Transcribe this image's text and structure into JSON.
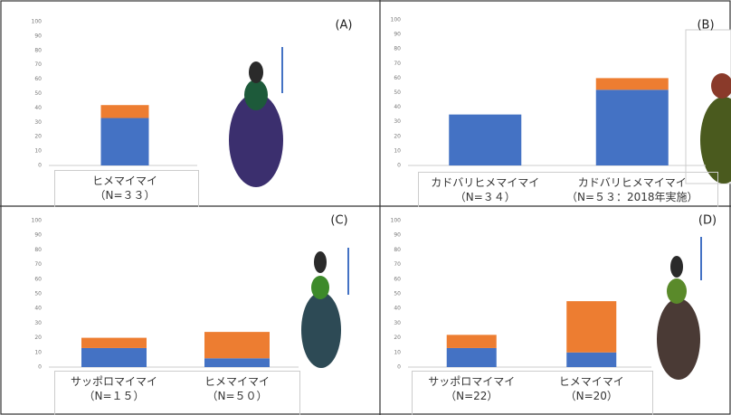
{
  "chart_data": [
    {
      "type": "bar",
      "stacked": true,
      "panel_label": "(A)",
      "categories": [
        "ヒメマイマイ\n（N=３３）"
      ],
      "series": [
        {
          "color": "#4472c4",
          "values": [
            33
          ]
        },
        {
          "color": "#ed7d31",
          "values": [
            9
          ]
        }
      ],
      "ylim": [
        0,
        100
      ],
      "yticks": [
        0,
        10,
        20,
        30,
        40,
        50,
        60,
        70,
        80,
        90,
        100
      ]
    },
    {
      "type": "bar",
      "stacked": true,
      "panel_label": "(B)",
      "categories": [
        "カドバリヒメマイマイ\n（N=３４）",
        "カドバリヒメマイマイ\n（N=５３：2018年実施）"
      ],
      "series": [
        {
          "color": "#4472c4",
          "values": [
            35,
            52
          ]
        },
        {
          "color": "#ed7d31",
          "values": [
            0,
            8
          ]
        }
      ],
      "ylim": [
        0,
        100
      ],
      "yticks": [
        0,
        10,
        20,
        30,
        40,
        50,
        60,
        70,
        80,
        90,
        100
      ]
    },
    {
      "type": "bar",
      "stacked": true,
      "panel_label": "(C)",
      "categories": [
        "サッポロマイマイ\n（N=１５）",
        "ヒメマイマイ\n（N=５０）"
      ],
      "series": [
        {
          "color": "#4472c4",
          "values": [
            13,
            6
          ]
        },
        {
          "color": "#ed7d31",
          "values": [
            7,
            18
          ]
        }
      ],
      "ylim": [
        0,
        100
      ],
      "yticks": [
        0,
        10,
        20,
        30,
        40,
        50,
        60,
        70,
        80,
        90,
        100
      ]
    },
    {
      "type": "bar",
      "stacked": true,
      "panel_label": "(D)",
      "categories": [
        "サッポロマイマイ\n（N=22）",
        "ヒメマイマイ\n（N=20）"
      ],
      "series": [
        {
          "color": "#4472c4",
          "values": [
            13,
            10
          ]
        },
        {
          "color": "#ed7d31",
          "values": [
            9,
            35
          ]
        }
      ],
      "ylim": [
        0,
        100
      ],
      "yticks": [
        0,
        10,
        20,
        30,
        40,
        50,
        60,
        70,
        80,
        90,
        100
      ]
    }
  ]
}
